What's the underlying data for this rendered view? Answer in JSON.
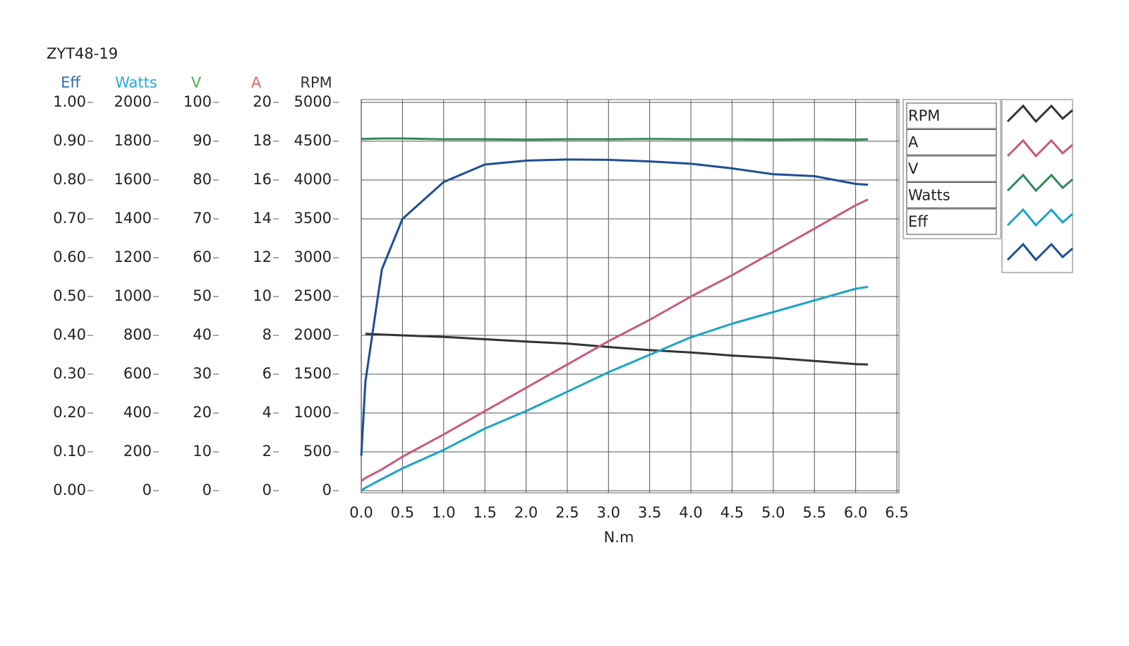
{
  "chart_data": {
    "type": "line",
    "title": "ZYT48-19",
    "x_label": "N.m",
    "x": [
      0,
      0.05,
      0.25,
      0.5,
      1.0,
      1.5,
      2.0,
      2.5,
      3.0,
      3.5,
      4.0,
      4.5,
      5.0,
      5.5,
      6.0,
      6.15
    ],
    "xlim": [
      0,
      6.5
    ],
    "xticks": [
      {
        "value": 0,
        "label": "0.0"
      },
      0.5,
      {
        "value": 1,
        "label": "1.0"
      },
      1.5,
      {
        "value": 2,
        "label": "2.0"
      },
      2.5,
      {
        "value": 3,
        "label": "3.0"
      },
      3.5,
      {
        "value": 4,
        "label": "4.0"
      },
      4.5,
      {
        "value": 5,
        "label": "5.0"
      },
      5.5,
      {
        "value": 6,
        "label": "6.0"
      },
      6.5
    ],
    "grid": true,
    "series": [
      {
        "name": "RPM",
        "color": "#333333",
        "ylim": [
          0,
          5000
        ],
        "yticks": [
          0,
          500,
          1000,
          1500,
          2000,
          2500,
          3000,
          3500,
          4000,
          4500,
          5000
        ],
        "values": [
          null,
          2020,
          2010,
          2000,
          1980,
          1950,
          1920,
          1895,
          1850,
          1810,
          1780,
          1740,
          1710,
          1670,
          1630,
          1625
        ]
      },
      {
        "name": "A",
        "color": "#c85a7c",
        "title_color": "#e06666",
        "ylim": [
          0,
          20
        ],
        "yticks": [
          0,
          2,
          4,
          6,
          8,
          10,
          12,
          14,
          16,
          18,
          20
        ],
        "values": [
          0.5,
          0.65,
          1.1,
          1.75,
          2.9,
          4.1,
          5.3,
          6.5,
          7.7,
          8.8,
          10.0,
          11.1,
          12.3,
          13.5,
          14.7,
          15.0
        ]
      },
      {
        "name": "V",
        "color": "#2e8b57",
        "title_color": "#4caf50",
        "ylim": [
          0,
          100
        ],
        "yticks": [
          0,
          10,
          20,
          30,
          40,
          50,
          60,
          70,
          80,
          90,
          100
        ],
        "values": [
          90.6,
          90.6,
          90.7,
          90.7,
          90.5,
          90.5,
          90.4,
          90.5,
          90.5,
          90.6,
          90.5,
          90.5,
          90.4,
          90.5,
          90.4,
          90.5
        ]
      },
      {
        "name": "Watts",
        "color": "#1ba3c8",
        "title_color": "#29a8d8",
        "ylim": [
          0,
          2000
        ],
        "yticks": [
          0,
          200,
          400,
          600,
          800,
          1000,
          1200,
          1400,
          1600,
          1800,
          2000
        ],
        "values": [
          0,
          15,
          60,
          115,
          210,
          320,
          410,
          510,
          610,
          700,
          790,
          860,
          920,
          980,
          1040,
          1050
        ]
      },
      {
        "name": "Eff",
        "color": "#1f4e96",
        "title_color": "#2e6db4",
        "ylim": [
          0,
          1
        ],
        "yticks": [
          {
            "value": 0,
            "label": "0.00"
          },
          {
            "value": 0.1,
            "label": "0.10"
          },
          {
            "value": 0.2,
            "label": "0.20"
          },
          {
            "value": 0.3,
            "label": "0.30"
          },
          {
            "value": 0.4,
            "label": "0.40"
          },
          {
            "value": 0.5,
            "label": "0.50"
          },
          {
            "value": 0.6,
            "label": "0.60"
          },
          {
            "value": 0.7,
            "label": "0.70"
          },
          {
            "value": 0.8,
            "label": "0.80"
          },
          {
            "value": 0.9,
            "label": "0.90"
          },
          {
            "value": 1,
            "label": "1.00"
          }
        ],
        "values": [
          0.09,
          0.28,
          0.57,
          0.7,
          0.795,
          0.84,
          0.85,
          0.853,
          0.852,
          0.848,
          0.842,
          0.83,
          0.815,
          0.81,
          0.79,
          0.788
        ]
      }
    ]
  }
}
